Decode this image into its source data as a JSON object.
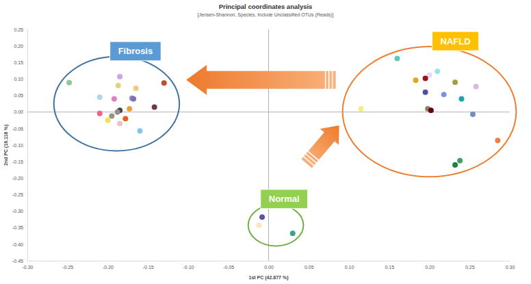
{
  "chart_data": {
    "type": "scatter",
    "title": "Principal coordinates analysis",
    "subtitle": "[Jensen-Shannon, Species, Include Unclassified OTUs (Reads)]",
    "x_label": "1st PC (42.877 %)",
    "y_label": "2nd PC (16.118 %)",
    "marker": "circle",
    "xlim": [
      -0.3,
      0.3
    ],
    "xticks": [
      {
        "value": -0.3,
        "label": "-0.30"
      },
      -0.25,
      {
        "value": -0.2,
        "label": "-0.20"
      },
      -0.15,
      {
        "value": -0.1,
        "label": "-0.10"
      },
      -0.05,
      {
        "value": 0,
        "label": "0.00"
      },
      0.05,
      {
        "value": 0.1,
        "label": "0.10"
      },
      0.15,
      {
        "value": 0.2,
        "label": "0.20"
      },
      0.25,
      {
        "value": 0.3,
        "label": "0.30"
      }
    ],
    "ylim": [
      -0.45,
      0.25
    ],
    "yticks": [
      -0.45,
      {
        "value": -0.4,
        "label": "-0.40"
      },
      -0.35,
      {
        "value": -0.3,
        "label": "-0.30"
      },
      -0.25,
      {
        "value": -0.2,
        "label": "-0.20"
      },
      -0.15,
      {
        "value": -0.1,
        "label": "-0.10"
      },
      -0.05,
      {
        "value": 0,
        "label": "0.00"
      },
      0.05,
      {
        "value": 0.1,
        "label": "0.10"
      },
      0.15,
      {
        "value": 0.2,
        "label": "0.20"
      },
      0.25
    ],
    "series": [
      {
        "name": "Fibrosis",
        "color": "#41719c",
        "x": [
          -0.248,
          -0.13,
          -0.185,
          -0.21,
          -0.187,
          -0.165,
          -0.17,
          -0.168,
          -0.192,
          -0.142,
          -0.173,
          -0.185,
          -0.188,
          -0.21,
          -0.195,
          -0.178,
          -0.2,
          -0.185,
          -0.16
        ],
        "values": [
          0.089,
          0.088,
          0.107,
          0.045,
          0.08,
          0.072,
          0.042,
          0.04,
          0.04,
          0.015,
          0.01,
          0.005,
          0.0,
          -0.004,
          -0.012,
          -0.02,
          -0.025,
          -0.035,
          -0.057
        ],
        "colors": [
          "#8fc79a",
          "#c0502a",
          "#c8a8e0",
          "#add8f0",
          "#e8d080",
          "#f5c880",
          "#9a8ad0",
          "#7c70b8",
          "#e080c0",
          "#6a3a4a",
          "#f0a030",
          "#444444",
          "#909090",
          "#f06080",
          "#a09080",
          "#e06020",
          "#f0e060",
          "#f0c0c0",
          "#80c8f0"
        ]
      },
      {
        "name": "NAFLD",
        "color": "#ed7d31",
        "x": [
          0.16,
          0.21,
          0.2,
          0.183,
          0.195,
          0.232,
          0.258,
          0.195,
          0.218,
          0.24,
          0.115,
          0.198,
          0.202,
          0.254,
          0.285,
          0.238,
          0.232
        ],
        "values": [
          0.162,
          0.123,
          0.112,
          0.096,
          0.102,
          0.09,
          0.077,
          0.06,
          0.053,
          0.04,
          0.01,
          0.01,
          0.005,
          -0.007,
          -0.086,
          -0.147,
          -0.16
        ],
        "colors": [
          "#60c8b8",
          "#a0e0e8",
          "#e8d8f0",
          "#e8a020",
          "#a01020",
          "#a0a040",
          "#d8b8d8",
          "#5050a0",
          "#8090e0",
          "#20a0b0",
          "#f0f080",
          "#908060",
          "#600010",
          "#7090c0",
          "#f08040",
          "#40a060",
          "#208040"
        ]
      },
      {
        "name": "Normal",
        "color": "#70ad47",
        "x": [
          -0.008,
          -0.012,
          0.03
        ],
        "values": [
          -0.318,
          -0.343,
          -0.367
        ],
        "colors": [
          "#6050a0",
          "#f8e8c0",
          "#40a090"
        ]
      }
    ]
  }
}
